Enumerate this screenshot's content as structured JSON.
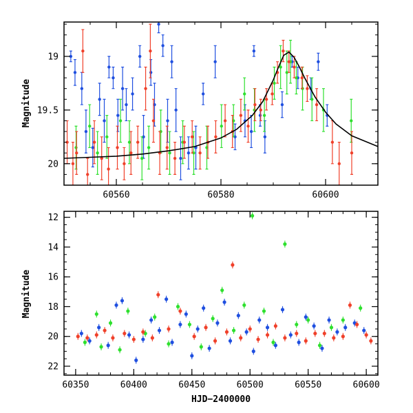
{
  "chart_data": [
    {
      "type": "scatter",
      "title": "",
      "xlabel": "",
      "ylabel": "Magnitude",
      "xlim": [
        60550,
        60610
      ],
      "ylim": [
        20.2,
        18.68
      ],
      "y_inverted": true,
      "xticks": [
        60560,
        60580,
        60600
      ],
      "yticks": [
        19,
        19.5,
        20
      ],
      "xtick_labels": [
        "60560",
        "60580",
        "60600"
      ],
      "ytick_labels": [
        "19",
        "19.5",
        "20"
      ],
      "grid": false,
      "legend": "none",
      "series": [
        {
          "color": "#1f4fe0",
          "points": [
            [
              60551.3,
              19.0,
              0.05
            ],
            [
              60552.1,
              19.15,
              0.12
            ],
            [
              60553.4,
              19.3,
              0.15
            ],
            [
              60554.2,
              19.7,
              0.2
            ],
            [
              60555.5,
              19.85,
              0.18
            ],
            [
              60556.8,
              19.4,
              0.15
            ],
            [
              60557.7,
              19.6,
              0.2
            ],
            [
              60558.6,
              19.1,
              0.1
            ],
            [
              60559.4,
              19.2,
              0.1
            ],
            [
              60560.3,
              19.55,
              0.15
            ],
            [
              60561.2,
              19.3,
              0.2
            ],
            [
              60561.9,
              19.45,
              0.15
            ],
            [
              60563.1,
              19.35,
              0.15
            ],
            [
              60564.5,
              19.0,
              0.1
            ],
            [
              60565.2,
              19.75,
              0.2
            ],
            [
              60566.6,
              19.15,
              0.12
            ],
            [
              60567.3,
              19.45,
              0.2
            ],
            [
              60568.1,
              18.7,
              0.08
            ],
            [
              60568.9,
              18.9,
              0.1
            ],
            [
              60569.8,
              19.6,
              0.2
            ],
            [
              60570.6,
              19.05,
              0.15
            ],
            [
              60571.4,
              19.5,
              0.2
            ],
            [
              60572.3,
              19.95,
              0.2
            ],
            [
              60573.8,
              19.9,
              0.15
            ],
            [
              60575.2,
              19.85,
              0.2
            ],
            [
              60576.6,
              19.35,
              0.1
            ],
            [
              60578.9,
              19.05,
              0.15
            ],
            [
              60582.7,
              19.75,
              0.12
            ],
            [
              60584.6,
              19.6,
              0.15
            ],
            [
              60585.8,
              19.7,
              0.15
            ],
            [
              60586.3,
              18.95,
              0.05
            ],
            [
              60587.5,
              19.55,
              0.1
            ],
            [
              60588.4,
              19.75,
              0.15
            ],
            [
              60591.7,
              19.45,
              0.12
            ],
            [
              60593.6,
              19.05,
              0.05
            ],
            [
              60594.7,
              19.2,
              0.1
            ],
            [
              60597.2,
              19.3,
              0.1
            ],
            [
              60598.6,
              19.05,
              0.08
            ],
            [
              60600.3,
              19.55,
              0.1
            ]
          ]
        },
        {
          "color": "#2ee02e",
          "points": [
            [
              60552.3,
              19.85,
              0.2
            ],
            [
              60554.9,
              19.65,
              0.2
            ],
            [
              60556.4,
              19.9,
              0.2
            ],
            [
              60558.2,
              19.75,
              0.2
            ],
            [
              60560.8,
              19.6,
              0.2
            ],
            [
              60562.5,
              19.8,
              0.2
            ],
            [
              60564.9,
              19.95,
              0.2
            ],
            [
              60566.2,
              19.85,
              0.2
            ],
            [
              60568.5,
              19.7,
              0.2
            ],
            [
              60570.2,
              19.9,
              0.2
            ],
            [
              60572.7,
              19.8,
              0.2
            ],
            [
              60574.8,
              19.9,
              0.2
            ],
            [
              60577.3,
              19.85,
              0.2
            ],
            [
              60580.1,
              19.65,
              0.2
            ],
            [
              60582.4,
              19.6,
              0.15
            ],
            [
              60584.5,
              19.35,
              0.15
            ],
            [
              60586.4,
              19.5,
              0.2
            ],
            [
              60588.3,
              19.55,
              0.15
            ],
            [
              60590.2,
              19.25,
              0.15
            ],
            [
              60591.4,
              19.1,
              0.2
            ],
            [
              60592.6,
              19.15,
              0.2
            ],
            [
              60593.3,
              19.05,
              0.2
            ],
            [
              60594.4,
              19.2,
              0.15
            ],
            [
              60595.6,
              19.3,
              0.2
            ],
            [
              60597.4,
              19.4,
              0.2
            ],
            [
              60599.6,
              19.5,
              0.2
            ],
            [
              60604.9,
              19.6,
              0.2
            ]
          ]
        },
        {
          "color": "#f0402a",
          "points": [
            [
              60550.6,
              19.8,
              0.2
            ],
            [
              60551.7,
              20.0,
              0.2
            ],
            [
              60552.4,
              19.9,
              0.2
            ],
            [
              60553.6,
              18.95,
              0.2
            ],
            [
              60554.5,
              20.1,
              0.15
            ],
            [
              60555.8,
              19.8,
              0.2
            ],
            [
              60557.2,
              19.95,
              0.2
            ],
            [
              60558.5,
              20.05,
              0.2
            ],
            [
              60560.2,
              19.85,
              0.2
            ],
            [
              60561.5,
              20.0,
              0.15
            ],
            [
              60562.8,
              19.9,
              0.2
            ],
            [
              60564.1,
              19.8,
              0.15
            ],
            [
              60565.6,
              19.3,
              0.2
            ],
            [
              60566.5,
              18.95,
              0.25
            ],
            [
              60567.1,
              19.6,
              0.2
            ],
            [
              60568.3,
              19.9,
              0.2
            ],
            [
              60569.7,
              19.85,
              0.2
            ],
            [
              60571.2,
              19.95,
              0.15
            ],
            [
              60573.0,
              19.8,
              0.15
            ],
            [
              60574.5,
              19.75,
              0.15
            ],
            [
              60576.0,
              19.9,
              0.15
            ],
            [
              60577.5,
              19.8,
              0.15
            ],
            [
              60579.0,
              19.75,
              0.15
            ],
            [
              60580.8,
              19.6,
              0.15
            ],
            [
              60582.2,
              19.7,
              0.15
            ],
            [
              60583.8,
              19.55,
              0.15
            ],
            [
              60585.2,
              19.65,
              0.15
            ],
            [
              60586.5,
              19.45,
              0.15
            ],
            [
              60587.6,
              19.5,
              0.1
            ],
            [
              60588.7,
              19.4,
              0.1
            ],
            [
              60589.8,
              19.35,
              0.1
            ],
            [
              60590.8,
              19.15,
              0.1
            ],
            [
              60591.9,
              18.95,
              0.1
            ],
            [
              60593.0,
              19.05,
              0.1
            ],
            [
              60594.0,
              19.1,
              0.1
            ],
            [
              60595.5,
              19.2,
              0.1
            ],
            [
              60596.5,
              19.3,
              0.12
            ],
            [
              60598.3,
              19.45,
              0.15
            ],
            [
              60601.3,
              19.8,
              0.2
            ],
            [
              60602.6,
              20.0,
              0.2
            ],
            [
              60605.0,
              19.9,
              0.2
            ]
          ]
        }
      ],
      "model_curve": {
        "color": "#000000",
        "x": [
          60550,
          60555,
          60560,
          60565,
          60570,
          60575,
          60580,
          60583,
          60586,
          60588,
          60590,
          60591,
          60592,
          60593,
          60594,
          60595,
          60596,
          60598,
          60600,
          60602,
          60605,
          60610
        ],
        "y": [
          19.95,
          19.94,
          19.93,
          19.91,
          19.88,
          19.84,
          19.76,
          19.68,
          19.55,
          19.42,
          19.22,
          19.1,
          18.99,
          18.96,
          19.01,
          19.1,
          19.2,
          19.38,
          19.52,
          19.63,
          19.74,
          19.84
        ]
      }
    },
    {
      "type": "scatter",
      "title": "",
      "xlabel": "HJD−2400000",
      "ylabel": "Magnitude",
      "xlim": [
        60340,
        60610
      ],
      "ylim": [
        22.6,
        11.6
      ],
      "y_inverted": true,
      "xticks": [
        60350,
        60400,
        60450,
        60500,
        60550,
        60600
      ],
      "yticks": [
        12,
        14,
        16,
        18,
        20,
        22
      ],
      "xtick_labels": [
        "60350",
        "60400",
        "60450",
        "60500",
        "60550",
        "60600"
      ],
      "ytick_labels": [
        "12",
        "14",
        "16",
        "18",
        "20",
        "22"
      ],
      "grid": false,
      "legend": "none",
      "series": [
        {
          "color": "#1f4fe0",
          "points": [
            [
              60355,
              19.8
            ],
            [
              60362,
              20.3
            ],
            [
              60370,
              19.4
            ],
            [
              60378,
              20.6
            ],
            [
              60385,
              17.9
            ],
            [
              60390,
              17.6
            ],
            [
              60396,
              19.9
            ],
            [
              60402,
              21.6
            ],
            [
              60408,
              20.2
            ],
            [
              60415,
              18.9
            ],
            [
              60422,
              19.6
            ],
            [
              60428,
              17.5
            ],
            [
              60433,
              20.4
            ],
            [
              60440,
              19.2
            ],
            [
              60445,
              18.5
            ],
            [
              60450,
              21.3
            ],
            [
              60455,
              19.5
            ],
            [
              60460,
              18.1
            ],
            [
              60465,
              20.8
            ],
            [
              60472,
              19.1
            ],
            [
              60478,
              17.7
            ],
            [
              60483,
              20.3
            ],
            [
              60490,
              18.6
            ],
            [
              60497,
              19.7
            ],
            [
              60503,
              21.0
            ],
            [
              60508,
              18.9
            ],
            [
              60515,
              19.4
            ],
            [
              60522,
              20.6
            ],
            [
              60528,
              18.2
            ],
            [
              60535,
              19.9
            ],
            [
              60542,
              20.4
            ],
            [
              60548,
              18.7
            ],
            [
              60555,
              19.3
            ],
            [
              60562,
              20.8
            ],
            [
              60568,
              18.9
            ],
            [
              60575,
              19.7
            ],
            [
              60582,
              19.4
            ],
            [
              60590,
              19.1
            ],
            [
              60598,
              19.6
            ]
          ]
        },
        {
          "color": "#2ee02e",
          "points": [
            [
              60358,
              20.4
            ],
            [
              60368,
              18.5
            ],
            [
              60372,
              20.7
            ],
            [
              60380,
              19.1
            ],
            [
              60388,
              20.9
            ],
            [
              60395,
              18.3
            ],
            [
              60410,
              19.8
            ],
            [
              60418,
              18.7
            ],
            [
              60430,
              20.5
            ],
            [
              60438,
              18.0
            ],
            [
              60448,
              19.2
            ],
            [
              60458,
              20.7
            ],
            [
              60468,
              18.8
            ],
            [
              60476,
              16.9
            ],
            [
              60486,
              19.6
            ],
            [
              60495,
              17.9
            ],
            [
              60502,
              11.9
            ],
            [
              60512,
              18.3
            ],
            [
              60520,
              20.4
            ],
            [
              60530,
              13.8
            ],
            [
              60540,
              19.2
            ],
            [
              60550,
              18.9
            ],
            [
              60560,
              20.6
            ],
            [
              60570,
              19.4
            ],
            [
              60580,
              18.9
            ],
            [
              60595,
              18.1
            ]
          ]
        },
        {
          "color": "#f0402a",
          "points": [
            [
              60352,
              20.0
            ],
            [
              60360,
              20.1
            ],
            [
              60368,
              19.9
            ],
            [
              60375,
              19.6
            ],
            [
              60382,
              20.1
            ],
            [
              60392,
              19.8
            ],
            [
              60400,
              20.2
            ],
            [
              60408,
              19.7
            ],
            [
              60416,
              20.1
            ],
            [
              60421,
              17.2
            ],
            [
              60430,
              19.5
            ],
            [
              60440,
              18.3
            ],
            [
              60452,
              20.0
            ],
            [
              60462,
              19.4
            ],
            [
              60470,
              20.3
            ],
            [
              60480,
              19.7
            ],
            [
              60485,
              15.2
            ],
            [
              60492,
              20.1
            ],
            [
              60500,
              19.5
            ],
            [
              60507,
              20.2
            ],
            [
              60515,
              19.9
            ],
            [
              60522,
              19.3
            ],
            [
              60530,
              20.1
            ],
            [
              60540,
              19.8
            ],
            [
              60548,
              20.3
            ],
            [
              60556,
              19.8
            ],
            [
              60564,
              19.8
            ],
            [
              60572,
              20.1
            ],
            [
              60580,
              20.0
            ],
            [
              60586,
              17.9
            ],
            [
              60592,
              19.2
            ],
            [
              60600,
              19.9
            ],
            [
              60604,
              20.3
            ]
          ]
        }
      ]
    }
  ]
}
